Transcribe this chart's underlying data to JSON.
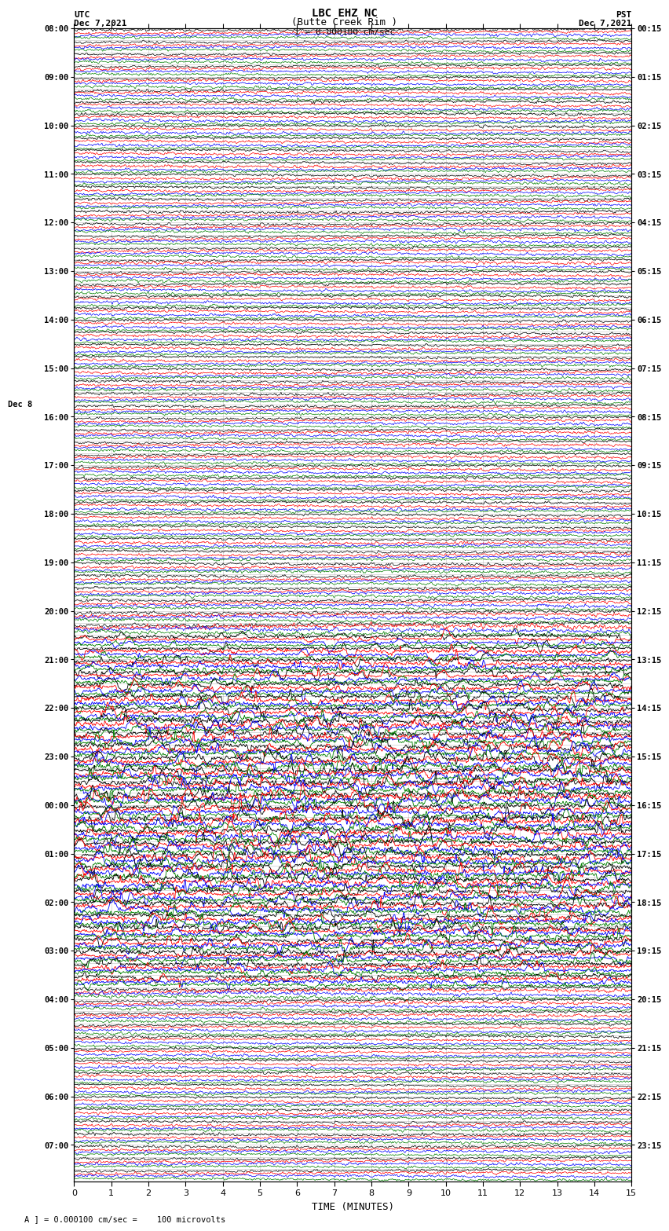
{
  "title_line1": "LBC EHZ NC",
  "title_line2": "(Butte Creek Rim )",
  "title_line3": "I = 0.000100 cm/sec",
  "label_utc": "UTC",
  "label_date_left": "Dec 7,2021",
  "label_pst": "PST",
  "label_date_right": "Dec 7,2021",
  "xlabel": "TIME (MINUTES)",
  "footnote": "A ] = 0.000100 cm/sec =    100 microvolts",
  "xlim": [
    0,
    15
  ],
  "xticks": [
    0,
    1,
    2,
    3,
    4,
    5,
    6,
    7,
    8,
    9,
    10,
    11,
    12,
    13,
    14,
    15
  ],
  "bg_color": "#ffffff",
  "grid_color": "#888888",
  "left_times": [
    "08:00",
    "",
    "",
    "",
    "09:00",
    "",
    "",
    "",
    "10:00",
    "",
    "",
    "",
    "11:00",
    "",
    "",
    "",
    "12:00",
    "",
    "",
    "",
    "13:00",
    "",
    "",
    "",
    "14:00",
    "",
    "",
    "",
    "15:00",
    "",
    "",
    "",
    "16:00",
    "",
    "",
    "",
    "17:00",
    "",
    "",
    "",
    "18:00",
    "",
    "",
    "",
    "19:00",
    "",
    "",
    "",
    "20:00",
    "",
    "",
    "",
    "21:00",
    "",
    "",
    "",
    "22:00",
    "",
    "",
    "",
    "23:00",
    "",
    "",
    "",
    "Dec 8\n00:00",
    "",
    "",
    "",
    "01:00",
    "",
    "",
    "",
    "02:00",
    "",
    "",
    "",
    "03:00",
    "",
    "",
    "",
    "04:00",
    "",
    "",
    "",
    "05:00",
    "",
    "",
    "",
    "06:00",
    "",
    "",
    "",
    "07:00",
    "",
    ""
  ],
  "right_times": [
    "00:15",
    "",
    "",
    "",
    "01:15",
    "",
    "",
    "",
    "02:15",
    "",
    "",
    "",
    "03:15",
    "",
    "",
    "",
    "04:15",
    "",
    "",
    "",
    "05:15",
    "",
    "",
    "",
    "06:15",
    "",
    "",
    "",
    "07:15",
    "",
    "",
    "",
    "08:15",
    "",
    "",
    "",
    "09:15",
    "",
    "",
    "",
    "10:15",
    "",
    "",
    "",
    "11:15",
    "",
    "",
    "",
    "12:15",
    "",
    "",
    "",
    "13:15",
    "",
    "",
    "",
    "14:15",
    "",
    "",
    "",
    "15:15",
    "",
    "",
    "",
    "16:15",
    "",
    "",
    "",
    "17:15",
    "",
    "",
    "",
    "18:15",
    "",
    "",
    "",
    "19:15",
    "",
    "",
    "",
    "20:15",
    "",
    "",
    "",
    "21:15",
    "",
    "",
    "",
    "22:15",
    "",
    "",
    "",
    "23:15",
    "",
    ""
  ],
  "noise_profile": [
    0.04,
    0.04,
    0.04,
    0.04,
    0.04,
    0.04,
    0.04,
    0.04,
    0.04,
    0.04,
    0.04,
    0.04,
    0.04,
    0.04,
    0.04,
    0.04,
    0.04,
    0.04,
    0.04,
    0.04,
    0.04,
    0.04,
    0.04,
    0.04,
    0.04,
    0.04,
    0.04,
    0.04,
    0.04,
    0.04,
    0.04,
    0.04,
    0.04,
    0.04,
    0.04,
    0.04,
    0.04,
    0.04,
    0.04,
    0.04,
    0.04,
    0.04,
    0.04,
    0.04,
    0.06,
    0.07,
    0.08,
    0.09,
    0.15,
    0.25,
    0.35,
    0.4,
    0.45,
    0.55,
    0.65,
    0.7,
    0.8,
    0.9,
    1.0,
    1.0,
    1.0,
    1.0,
    1.0,
    1.0,
    1.0,
    1.0,
    1.0,
    1.0,
    1.0,
    1.0,
    0.95,
    0.9,
    0.85,
    0.8,
    0.7,
    0.6,
    0.5,
    0.4,
    0.3,
    0.2,
    0.1,
    0.08,
    0.06,
    0.05,
    0.04,
    0.04,
    0.04,
    0.04,
    0.04,
    0.04,
    0.04,
    0.04,
    0.04,
    0.04,
    0.04
  ]
}
